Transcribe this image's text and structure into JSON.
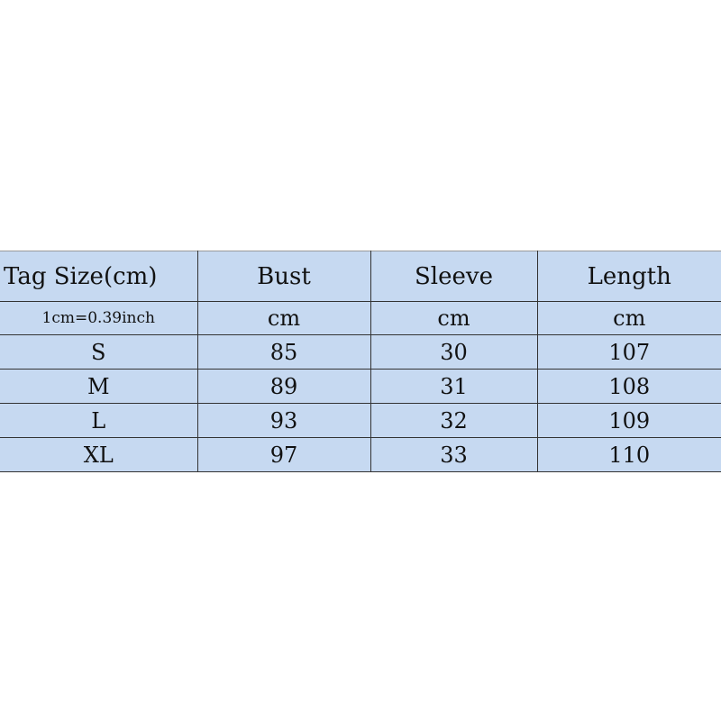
{
  "table": {
    "headers": [
      "Tag Size(cm)",
      "Bust",
      "Sleeve",
      "Length"
    ],
    "units": [
      "1cm=0.39inch",
      "cm",
      "cm",
      "cm"
    ],
    "rows": [
      [
        "S",
        "85",
        "30",
        "107"
      ],
      [
        "M",
        "89",
        "31",
        "108"
      ],
      [
        "L",
        "93",
        "32",
        "109"
      ],
      [
        "XL",
        "97",
        "33",
        "110"
      ]
    ],
    "colors": {
      "background": "#c6d9f1",
      "border": "#333333"
    }
  }
}
